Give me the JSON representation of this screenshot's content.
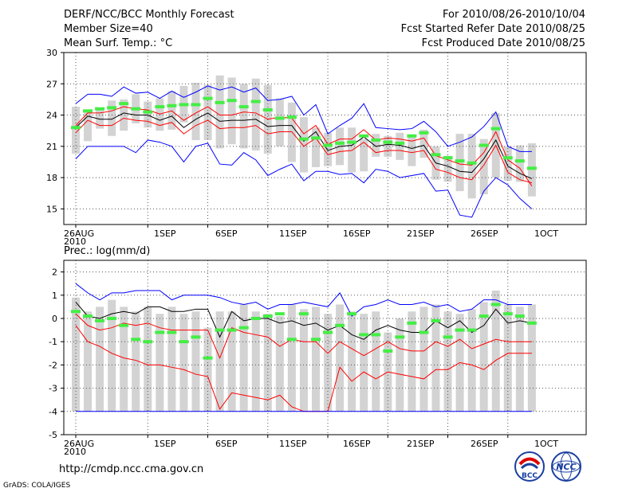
{
  "header": {
    "title": "DERF/NCC/BCC Monthly Forecast",
    "member": "Member Size=40",
    "variable": "Mean Surf. Temp.: °C",
    "period": "For 2010/08/26-2010/10/04",
    "started": "Fcst Started Refer Date 2010/08/25",
    "produced": "Fcst Produced Date 2010/08/25"
  },
  "footer": {
    "url": "http://cmdp.ncc.cma.gov.cn",
    "grads": "GrADS: COLA/IGES",
    "logo_left": "BCC",
    "logo_right": "NCC"
  },
  "chart_data": [
    {
      "type": "line",
      "title": "Mean Surf. Temp.: °C",
      "x_tick_labels": [
        "26AUG\n2010",
        "1SEP",
        "6SEP",
        "11SEP",
        "16SEP",
        "21SEP",
        "26SEP",
        "1OCT"
      ],
      "ylim": [
        13.5,
        30
      ],
      "y_ticks": [
        15,
        18,
        21,
        24,
        27,
        30
      ],
      "grid": true,
      "series": [
        {
          "name": "max",
          "color": "#0000ff",
          "values": [
            19.8,
            21,
            21,
            21,
            21,
            20.4,
            21.6,
            21.4,
            21,
            19.5,
            21,
            21.3,
            19.3,
            19.2,
            20.4,
            19.7,
            18.2,
            18.8,
            19.3,
            17.7,
            18.6,
            18.6,
            18.3,
            18.4,
            17.5,
            18.8,
            18.6,
            18,
            18.2,
            18.4,
            16.7,
            16.8,
            14.4,
            14.2,
            16.7,
            18,
            17.3,
            16,
            15
          ]
        },
        {
          "name": "upper",
          "color": "#ff0000",
          "values": [
            23,
            24.2,
            24.2,
            24.4,
            24.8,
            24.6,
            24.5,
            24.1,
            24.4,
            23.5,
            24.2,
            24.8,
            24.0,
            24.0,
            24.3,
            24.2,
            23.6,
            23.8,
            23.7,
            22.2,
            23.0,
            21.2,
            21.7,
            21.7,
            22.6,
            21.6,
            21.8,
            21.7,
            21.5,
            21.8,
            20.1,
            19.7,
            19.3,
            19.2,
            20.4,
            22.4,
            19.7,
            18.9,
            17.2
          ]
        },
        {
          "name": "mean",
          "color": "#000000",
          "values": [
            22.8,
            23.9,
            23.6,
            23.6,
            24.2,
            24,
            24,
            23.5,
            23.9,
            22.8,
            23.6,
            24.2,
            23.4,
            23.5,
            23.5,
            23.6,
            22.9,
            23.0,
            23.0,
            21.5,
            22.4,
            20.6,
            21.0,
            21.1,
            21.9,
            21.0,
            21.2,
            21.1,
            20.8,
            21.1,
            19.4,
            19.1,
            18.6,
            18.5,
            19.8,
            21.6,
            19.1,
            18.4,
            17.9
          ]
        },
        {
          "name": "lower",
          "color": "#ff0000",
          "values": [
            22.3,
            23.5,
            23.0,
            23.0,
            23.7,
            23.5,
            23.4,
            23.0,
            23.3,
            22.2,
            23.0,
            23.5,
            22.7,
            22.8,
            22.8,
            23.0,
            22.2,
            22.4,
            22.4,
            21.0,
            21.8,
            20.2,
            20.5,
            20.6,
            21.4,
            20.4,
            20.6,
            20.6,
            20.4,
            20.6,
            18.8,
            18.5,
            18.0,
            17.8,
            19.2,
            21.1,
            18.5,
            17.8,
            17.5
          ]
        },
        {
          "name": "min",
          "color": "#0000ff",
          "values": [
            25.1,
            26,
            26,
            25.8,
            26.7,
            26.1,
            26.2,
            25.6,
            26.3,
            25.7,
            26.2,
            26.8,
            26.4,
            26.7,
            26.2,
            26.6,
            25.4,
            25.5,
            25.8,
            24,
            25,
            22.2,
            23,
            23.7,
            25.1,
            22.8,
            22.7,
            22.6,
            22.7,
            23.4,
            22.4,
            21,
            21.4,
            21.9,
            22.9,
            24.3,
            21,
            20.5,
            20.5
          ]
        }
      ],
      "ensemble_mode": [
        22.8,
        24.4,
        24.6,
        24.7,
        25.1,
        24.6,
        24.3,
        24.8,
        24.9,
        25.0,
        25.0,
        25.6,
        25.2,
        25.4,
        24.8,
        25.3,
        24.5,
        23.7,
        23.8,
        21.7,
        21.8,
        21.1,
        21.3,
        21.4,
        22.0,
        21.6,
        21.4,
        21.3,
        22.0,
        22.3,
        20.2,
        19.9,
        19.6,
        19.4,
        21.1,
        22.7,
        19.9,
        19.6,
        18.9
      ],
      "range_bars": [
        [
          20.3,
          24.8
        ],
        [
          21.5,
          24.5
        ],
        [
          22.7,
          24.6
        ],
        [
          22.0,
          25.4
        ],
        [
          22.5,
          25.5
        ],
        [
          23.2,
          26.0
        ],
        [
          22.8,
          25.3
        ],
        [
          22.5,
          25.6
        ],
        [
          22.6,
          26.3
        ],
        [
          23.3,
          26.8
        ],
        [
          21.6,
          27.1
        ],
        [
          21.6,
          26.9
        ],
        [
          20.8,
          27.8
        ],
        [
          21.2,
          27.6
        ],
        [
          20.8,
          27.0
        ],
        [
          20.6,
          27.5
        ],
        [
          20.3,
          26.9
        ],
        [
          21.0,
          25.6
        ],
        [
          19.5,
          25.2
        ],
        [
          18.5,
          23.8
        ],
        [
          19.0,
          22.8
        ],
        [
          19.1,
          22.3
        ],
        [
          19.2,
          22.8
        ],
        [
          18.5,
          22.8
        ],
        [
          18.6,
          21.7
        ],
        [
          20.0,
          22.2
        ],
        [
          20.0,
          22.0
        ],
        [
          19.7,
          22.3
        ],
        [
          19.1,
          21.9
        ],
        [
          19.9,
          22.6
        ],
        [
          17.8,
          21.0
        ],
        [
          17.6,
          20.1
        ],
        [
          16.7,
          22.2
        ],
        [
          16.0,
          22.2
        ],
        [
          16.4,
          21.7
        ],
        [
          18.0,
          24.2
        ],
        [
          17.7,
          21.0
        ],
        [
          17.6,
          21.1
        ],
        [
          16.2,
          21.3
        ]
      ]
    },
    {
      "type": "line",
      "title": "Prec.: log(mm/d)",
      "x_tick_labels": [
        "26AUG\n2010",
        "1SEP",
        "6SEP",
        "11SEP",
        "16SEP",
        "21SEP",
        "26SEP",
        "1OCT"
      ],
      "ylim": [
        -5,
        2.5
      ],
      "y_ticks": [
        -5,
        -4,
        -3,
        -2,
        -1,
        0,
        1,
        2
      ],
      "grid": true,
      "series": [
        {
          "name": "max",
          "color": "#0000ff",
          "values": [
            1.5,
            1.1,
            0.8,
            1.1,
            1.1,
            1.2,
            1.2,
            1.2,
            0.8,
            1.0,
            1.0,
            1.0,
            0.9,
            0.7,
            0.6,
            0.7,
            0.4,
            0.6,
            0.6,
            0.7,
            0.6,
            0.5,
            1.1,
            0.1,
            0.5,
            0.6,
            0.8,
            0.6,
            0.6,
            0.7,
            0.5,
            0.6,
            0.3,
            0.4,
            0.8,
            0.8,
            0.6,
            0.6,
            0.6
          ]
        },
        {
          "name": "upper",
          "color": "#000000",
          "values": [
            0.7,
            0.1,
            0.0,
            0.2,
            0.3,
            0.2,
            0.5,
            0.5,
            0.3,
            0.3,
            0.4,
            0.4,
            -0.8,
            0.3,
            -0.1,
            0.0,
            0.0,
            -0.2,
            -0.1,
            -0.3,
            -0.2,
            -0.5,
            -0.3,
            -0.7,
            -0.9,
            -0.5,
            -0.3,
            -0.5,
            -0.6,
            -0.6,
            -0.1,
            -0.4,
            -0.1,
            -0.6,
            -0.3,
            0.4,
            -0.2,
            -0.1,
            -0.2
          ]
        },
        {
          "name": "mean",
          "color": "#ff0000",
          "values": [
            0.2,
            -0.3,
            -0.5,
            -0.4,
            -0.2,
            -0.3,
            -0.2,
            -0.4,
            -0.5,
            -0.5,
            -0.5,
            -0.5,
            -1.7,
            -0.4,
            -0.6,
            -0.7,
            -0.8,
            -1.2,
            -0.9,
            -1.0,
            -1.0,
            -1.5,
            -1.0,
            -1.3,
            -1.6,
            -1.3,
            -1.0,
            -1.3,
            -1.4,
            -1.4,
            -1.0,
            -1.2,
            -0.9,
            -1.3,
            -1.1,
            -0.9,
            -1.0,
            -1.0,
            -1.0
          ]
        },
        {
          "name": "lower",
          "color": "#ff0000",
          "values": [
            -0.3,
            -1.0,
            -1.2,
            -1.5,
            -1.7,
            -1.8,
            -2.0,
            -2.0,
            -2.1,
            -2.2,
            -2.4,
            -2.5,
            -3.9,
            -3.2,
            -3.3,
            -3.4,
            -3.5,
            -3.3,
            -3.8,
            -4.0,
            -4.0,
            -4.0,
            -2.1,
            -2.7,
            -2.3,
            -2.6,
            -2.3,
            -2.4,
            -2.5,
            -2.6,
            -2.2,
            -2.2,
            -1.9,
            -2.0,
            -2.2,
            -1.8,
            -1.5,
            -1.5,
            -1.5
          ]
        },
        {
          "name": "min",
          "color": "#0000ff",
          "values": [
            -4,
            -4,
            -4,
            -4,
            -4,
            -4,
            -4,
            -4,
            -4,
            -4,
            -4,
            -4,
            -4,
            -4,
            -4,
            -4,
            -4,
            -4,
            -4,
            -4,
            -4,
            -4,
            -4,
            -4,
            -4,
            -4,
            -4,
            -4,
            -4,
            -4,
            -4,
            -4,
            -4,
            -4,
            -4,
            -4,
            -4,
            -4,
            -4
          ]
        }
      ],
      "ensemble_mode": [
        0.3,
        0.1,
        -0.1,
        0.0,
        -0.3,
        -0.9,
        -1.0,
        -0.6,
        -0.6,
        -1.0,
        -0.8,
        -1.7,
        -0.5,
        -0.5,
        -0.4,
        0.0,
        0.1,
        0.2,
        -0.9,
        0.2,
        -0.9,
        -0.6,
        -0.3,
        0.2,
        -0.7,
        -0.7,
        -1.4,
        -0.8,
        -0.2,
        -0.6,
        -0.1,
        -0.8,
        -0.5,
        -0.5,
        0.1,
        0.6,
        0.2,
        0.1,
        -0.2
      ],
      "range_bars": [
        [
          -4,
          0.9
        ],
        [
          -4,
          0.3
        ],
        [
          -4,
          0.5
        ],
        [
          -4,
          0.8
        ],
        [
          -4,
          0.5
        ],
        [
          -4,
          0.3
        ],
        [
          -4,
          0.5
        ],
        [
          -4,
          0.2
        ],
        [
          -4,
          0.5
        ],
        [
          -4,
          0.2
        ],
        [
          -4,
          0.3
        ],
        [
          -4,
          -0.4
        ],
        [
          -4,
          0.3
        ],
        [
          -4,
          0.3
        ],
        [
          -4,
          0.6
        ],
        [
          -4,
          0.3
        ],
        [
          -4,
          0.2
        ],
        [
          -4,
          0.1
        ],
        [
          -4,
          0.6
        ],
        [
          -4,
          0.4
        ],
        [
          -4,
          0.5
        ],
        [
          -4,
          0.2
        ],
        [
          -4,
          0.6
        ],
        [
          -4,
          0.3
        ],
        [
          -4,
          0.2
        ],
        [
          -4,
          0.3
        ],
        [
          -4,
          -0.6
        ],
        [
          -4,
          0.0
        ],
        [
          -4,
          0.3
        ],
        [
          -4,
          0.5
        ],
        [
          -4,
          0.6
        ],
        [
          -4,
          0.3
        ],
        [
          -4,
          0.2
        ],
        [
          -4,
          0.4
        ],
        [
          -4,
          0.7
        ],
        [
          -4,
          1.2
        ],
        [
          -4,
          0.6
        ],
        [
          -4,
          0.5
        ],
        [
          -4,
          0.6
        ]
      ]
    }
  ]
}
